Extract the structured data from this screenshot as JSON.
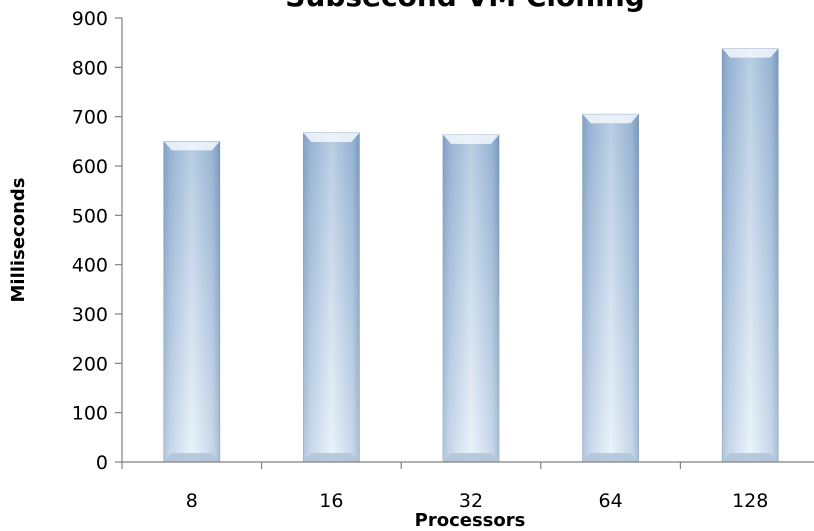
{
  "chart_data": {
    "type": "bar",
    "title": "Subsecond VM Cloning",
    "xlabel": "Processors",
    "ylabel": "Milliseconds",
    "categories": [
      "8",
      "16",
      "32",
      "64",
      "128"
    ],
    "values": [
      650,
      667,
      663,
      705,
      838
    ],
    "ylim": [
      0,
      900
    ],
    "yticks": [
      "0",
      "100",
      "200",
      "300",
      "400",
      "500",
      "600",
      "700",
      "800",
      "900"
    ],
    "grid": false,
    "legend": "none",
    "bar_colors": {
      "edge": "#7f9fbf",
      "mid": "#dce9f7",
      "top_cap": "#c3d6ec"
    }
  }
}
